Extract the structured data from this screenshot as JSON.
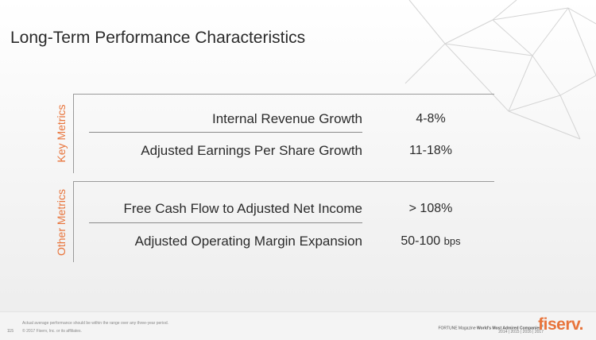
{
  "slide": {
    "title": "Long-Term Performance Characteristics",
    "sections": {
      "key": {
        "label": "Key Metrics",
        "rows": [
          {
            "label": "Internal Revenue Growth",
            "value": "4-8%"
          },
          {
            "label": "Adjusted Earnings Per Share Growth",
            "value": "11-18%"
          }
        ]
      },
      "other": {
        "label": "Other Metrics",
        "rows": [
          {
            "label": "Free Cash Flow to Adjusted Net Income",
            "value": "> 108%"
          },
          {
            "label": "Adjusted Operating Margin Expansion",
            "value": "50-100",
            "unit": "bps"
          }
        ]
      }
    },
    "accent_color": "#e8743b"
  },
  "footer": {
    "footnote": "Actual average performance should be within the range over any three-year period.",
    "page_number": "115",
    "copyright": "© 2017 Fiserv, Inc. or its affiliates.",
    "fortune_prefix": "FORTUNE Magazine",
    "fortune_bold": "World's Most Admired Companies",
    "fortune_mark": "®",
    "years": "2014 | 2015 | 2016 | 2017",
    "logo": "fiserv."
  }
}
